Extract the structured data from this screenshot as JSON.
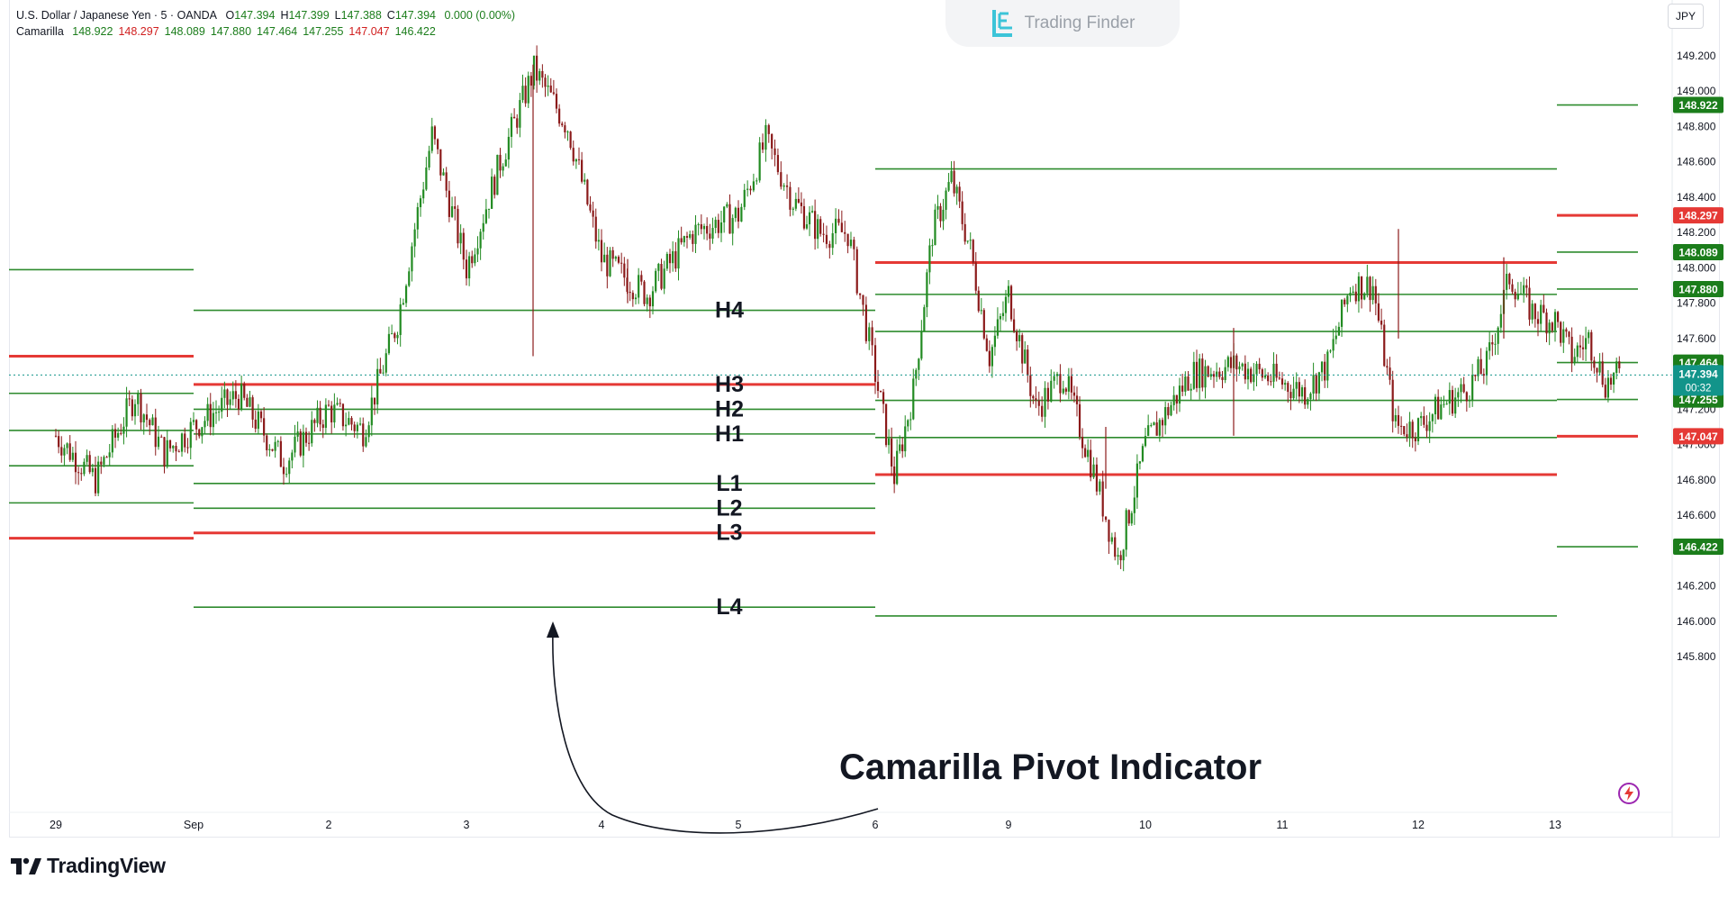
{
  "legend": {
    "symbol_line": "U.S. Dollar / Japanese Yen · 5 · OANDA",
    "ohlc": [
      {
        "key": "O",
        "value": "147.394"
      },
      {
        "key": "H",
        "value": "147.399"
      },
      {
        "key": "L",
        "value": "147.388"
      },
      {
        "key": "C",
        "value": "147.394"
      }
    ],
    "change": "0.000 (0.00%)",
    "indicator_name": "Camarilla",
    "indicator_values": [
      {
        "value": "148.922",
        "color": "#1b7d1b"
      },
      {
        "value": "148.297",
        "color": "#d11f1f"
      },
      {
        "value": "148.089",
        "color": "#1b7d1b"
      },
      {
        "value": "147.880",
        "color": "#1b7d1b"
      },
      {
        "value": "147.464",
        "color": "#1b7d1b"
      },
      {
        "value": "147.255",
        "color": "#1b7d1b"
      },
      {
        "value": "147.047",
        "color": "#d11f1f"
      },
      {
        "value": "146.422",
        "color": "#1b7d1b"
      }
    ]
  },
  "watermark": {
    "text": "Trading Finder"
  },
  "currency": "JPY",
  "branding": {
    "text": "TradingView"
  },
  "annotation": {
    "text": "Camarilla Pivot Indicator"
  },
  "colors": {
    "green": "#2e8b2e",
    "red": "#e53935",
    "up_candle": "#228b22",
    "down_candle": "#8b1a1a",
    "current_price": "#12948a",
    "badge_green": "#1b7d1b",
    "badge_red": "#e53935"
  },
  "chart_data": {
    "type": "candlestick",
    "title": "",
    "symbol": "USD/JPY",
    "timeframe": "5",
    "y_axis": {
      "ticks": [
        "149.200",
        "149.000",
        "148.800",
        "148.600",
        "148.400",
        "148.200",
        "148.000",
        "147.800",
        "147.600",
        "147.200",
        "147.000",
        "146.800",
        "146.600",
        "146.400",
        "146.200",
        "146.000",
        "145.800"
      ],
      "range": [
        145.74,
        149.34
      ]
    },
    "x_axis": {
      "ticks": [
        "29",
        "Sep",
        "2",
        "3",
        "4",
        "5",
        "6",
        "9",
        "10",
        "11",
        "12",
        "13"
      ]
    },
    "current_price": {
      "value": "147.394",
      "countdown": "00:32"
    },
    "price_badges": [
      {
        "value": "148.922",
        "color": "green"
      },
      {
        "value": "148.297",
        "color": "red"
      },
      {
        "value": "148.089",
        "color": "green"
      },
      {
        "value": "147.880",
        "color": "green"
      },
      {
        "value": "147.464",
        "color": "green"
      },
      {
        "value": "147.255",
        "color": "green"
      },
      {
        "value": "147.047",
        "color": "red"
      },
      {
        "value": "146.422",
        "color": "green"
      }
    ],
    "session_pivots": [
      {
        "start": "Aug 29",
        "end": "Sep",
        "levels": {
          "H4": 147.99,
          "H3": 147.5,
          "H2": 147.29,
          "H1": 147.08,
          "L1": 146.88,
          "L2": 146.67,
          "L3": 146.47
        }
      },
      {
        "start": "Sep",
        "end": "6",
        "levels": {
          "H4": 147.76,
          "H3": 147.34,
          "H2": 147.2,
          "H1": 147.06,
          "L1": 146.78,
          "L2": 146.64,
          "L3": 146.5,
          "L4": 146.08
        }
      },
      {
        "start": "6",
        "end": "13",
        "levels": {
          "H4": 148.56,
          "H3": 148.03,
          "H2": 147.85,
          "H1": 147.64,
          "L1": 147.25,
          "L2": 147.04,
          "L3": 146.83,
          "L4": 146.03
        }
      },
      {
        "start": "13",
        "end": "13+",
        "levels": {
          "H4": 148.922,
          "H3": 148.297,
          "H2": 148.089,
          "H1": 147.88,
          "L1": 147.464,
          "L2": 147.255,
          "L3": 147.047,
          "L4": 146.422
        }
      }
    ],
    "level_labels": [
      "H4",
      "H3",
      "H2",
      "H1",
      "L1",
      "L2",
      "L3",
      "L4"
    ],
    "price_path": [
      {
        "date": "Aug 29",
        "price": 147.05
      },
      {
        "date": "Aug 29",
        "price": 146.8
      },
      {
        "date": "Aug 30",
        "price": 147.28
      },
      {
        "date": "Aug 30",
        "price": 146.95
      },
      {
        "date": "Sep",
        "price": 147.1
      },
      {
        "date": "Sep",
        "price": 147.28
      },
      {
        "date": "Sep",
        "price": 146.9
      },
      {
        "date": "Sep 2",
        "price": 147.2
      },
      {
        "date": "Sep 2",
        "price": 147.08
      },
      {
        "date": "Sep 2",
        "price": 147.7
      },
      {
        "date": "Sep 2",
        "price": 148.75
      },
      {
        "date": "Sep 3",
        "price": 148.0
      },
      {
        "date": "Sep 3",
        "price": 148.6
      },
      {
        "date": "Sep 3",
        "price": 149.12
      },
      {
        "date": "Sep 3",
        "price": 148.8
      },
      {
        "date": "Sep 4",
        "price": 148.05
      },
      {
        "date": "Sep 4",
        "price": 147.85
      },
      {
        "date": "Sep 4",
        "price": 148.2
      },
      {
        "date": "Sep 5",
        "price": 148.3
      },
      {
        "date": "Sep 5",
        "price": 148.72
      },
      {
        "date": "Sep 5",
        "price": 148.38
      },
      {
        "date": "Sep 5",
        "price": 148.2
      },
      {
        "date": "Sep 5",
        "price": 148.2
      },
      {
        "date": "Sep 6",
        "price": 147.4
      },
      {
        "date": "Sep 6",
        "price": 146.82
      },
      {
        "date": "Sep 6",
        "price": 147.3
      },
      {
        "date": "Sep 6",
        "price": 148.2
      },
      {
        "date": "Sep 6",
        "price": 148.5
      },
      {
        "date": "Sep 6",
        "price": 148.1
      },
      {
        "date": "Sep 6",
        "price": 147.5
      },
      {
        "date": "Sep 9",
        "price": 147.85
      },
      {
        "date": "Sep 9",
        "price": 147.2
      },
      {
        "date": "Sep 9",
        "price": 147.4
      },
      {
        "date": "Sep 9",
        "price": 146.9
      },
      {
        "date": "Sep 9",
        "price": 146.35
      },
      {
        "date": "Sep 10",
        "price": 147.0
      },
      {
        "date": "Sep 10",
        "price": 147.4
      },
      {
        "date": "Sep 10",
        "price": 147.45
      },
      {
        "date": "Sep 11",
        "price": 147.35
      },
      {
        "date": "Sep 11",
        "price": 147.3
      },
      {
        "date": "Sep 11",
        "price": 147.45
      },
      {
        "date": "Sep 11",
        "price": 147.9
      },
      {
        "date": "Sep 11",
        "price": 147.9
      },
      {
        "date": "Sep 11",
        "price": 147.1
      },
      {
        "date": "Sep 12",
        "price": 147.1
      },
      {
        "date": "Sep 12",
        "price": 147.22
      },
      {
        "date": "Sep 12",
        "price": 147.3
      },
      {
        "date": "Sep 12",
        "price": 147.45
      },
      {
        "date": "Sep 12",
        "price": 147.95
      },
      {
        "date": "Sep 12",
        "price": 147.75
      },
      {
        "date": "Sep 13",
        "price": 147.7
      },
      {
        "date": "Sep 13",
        "price": 147.5
      },
      {
        "date": "Sep 13",
        "price": 147.6
      },
      {
        "date": "Sep 13",
        "price": 147.35
      },
      {
        "date": "Sep 13",
        "price": 147.4
      }
    ]
  }
}
